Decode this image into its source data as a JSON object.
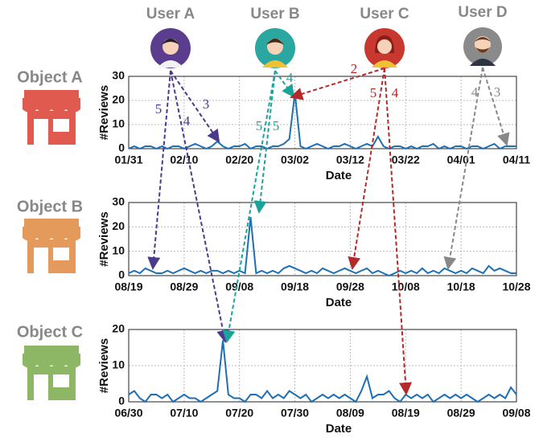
{
  "users": [
    "User A",
    "User B",
    "User C",
    "User D"
  ],
  "objects": [
    "Object A",
    "Object B",
    "Object C"
  ],
  "arrows": [
    {
      "rating": 3
    },
    {
      "rating": 5
    },
    {
      "rating": 4
    },
    {
      "rating": 4
    },
    {
      "rating": 5
    },
    {
      "rating": 5
    },
    {
      "rating": 2
    },
    {
      "rating": 5
    },
    {
      "rating": 4
    },
    {
      "rating": 3
    },
    {
      "rating": 4
    }
  ],
  "chart_data": [
    {
      "type": "line",
      "xlabel": "Date",
      "ylabel": "#Reviews",
      "color": "#1f6fb4",
      "grid": true,
      "ylim": [
        0,
        30
      ],
      "yticks": [
        0,
        10,
        20,
        30
      ],
      "xticks": [
        "01/31",
        "02/10",
        "02/20",
        "03/02",
        "03/12",
        "03/22",
        "04/01",
        "04/11"
      ],
      "x": [
        "01/31",
        "02/01",
        "02/02",
        "02/03",
        "02/04",
        "02/05",
        "02/06",
        "02/07",
        "02/08",
        "02/09",
        "02/10",
        "02/11",
        "02/12",
        "02/13",
        "02/14",
        "02/15",
        "02/16",
        "02/17",
        "02/18",
        "02/19",
        "02/20",
        "02/21",
        "02/22",
        "02/23",
        "02/24",
        "02/25",
        "02/26",
        "02/27",
        "02/28",
        "03/01",
        "03/02",
        "03/03",
        "03/04",
        "03/05",
        "03/06",
        "03/07",
        "03/08",
        "03/09",
        "03/10",
        "03/11",
        "03/12",
        "03/13",
        "03/14",
        "03/15",
        "03/16",
        "03/17",
        "03/18",
        "03/19",
        "03/20",
        "03/21",
        "03/22",
        "03/23",
        "03/24",
        "03/25",
        "03/26",
        "03/27",
        "03/28",
        "03/29",
        "03/30",
        "03/31",
        "04/01",
        "04/02",
        "04/03",
        "04/04",
        "04/05",
        "04/06",
        "04/07",
        "04/08",
        "04/09",
        "04/10",
        "04/11"
      ],
      "values": [
        0,
        1,
        0,
        1,
        1,
        0,
        1,
        0,
        1,
        1,
        0,
        1,
        2,
        1,
        0,
        1,
        3,
        1,
        0,
        1,
        1,
        2,
        0,
        1,
        1,
        0,
        1,
        1,
        2,
        4,
        23,
        1,
        0,
        1,
        2,
        1,
        0,
        1,
        1,
        2,
        1,
        0,
        1,
        2,
        1,
        5,
        1,
        0,
        1,
        1,
        0,
        1,
        0,
        1,
        1,
        2,
        0,
        1,
        0,
        1,
        1,
        0,
        1,
        1,
        0,
        1,
        2,
        0,
        1,
        1,
        1
      ]
    },
    {
      "type": "line",
      "xlabel": "Date",
      "ylabel": "#Reviews",
      "color": "#1f6fb4",
      "grid": true,
      "ylim": [
        0,
        30
      ],
      "yticks": [
        0,
        10,
        20,
        30
      ],
      "xticks": [
        "08/19",
        "08/29",
        "09/08",
        "09/18",
        "09/28",
        "10/08",
        "10/18",
        "10/28"
      ],
      "x": [
        "08/19",
        "08/20",
        "08/21",
        "08/22",
        "08/23",
        "08/24",
        "08/25",
        "08/26",
        "08/27",
        "08/28",
        "08/29",
        "08/30",
        "08/31",
        "09/01",
        "09/02",
        "09/03",
        "09/04",
        "09/05",
        "09/06",
        "09/07",
        "09/08",
        "09/09",
        "09/10",
        "09/11",
        "09/12",
        "09/13",
        "09/14",
        "09/15",
        "09/16",
        "09/17",
        "09/18",
        "09/19",
        "09/20",
        "09/21",
        "09/22",
        "09/23",
        "09/24",
        "09/25",
        "09/26",
        "09/27",
        "09/28",
        "09/29",
        "09/30",
        "10/01",
        "10/02",
        "10/03",
        "10/04",
        "10/05",
        "10/06",
        "10/07",
        "10/08",
        "10/09",
        "10/10",
        "10/11",
        "10/12",
        "10/13",
        "10/14",
        "10/15",
        "10/16",
        "10/17",
        "10/18",
        "10/19",
        "10/20",
        "10/21",
        "10/22",
        "10/23",
        "10/24",
        "10/25",
        "10/26",
        "10/27",
        "10/28"
      ],
      "values": [
        1,
        2,
        1,
        3,
        2,
        1,
        1,
        2,
        1,
        2,
        3,
        2,
        1,
        2,
        1,
        2,
        2,
        1,
        2,
        1,
        2,
        1,
        24,
        1,
        2,
        1,
        2,
        1,
        3,
        4,
        3,
        2,
        1,
        2,
        1,
        3,
        2,
        1,
        2,
        3,
        2,
        1,
        2,
        3,
        1,
        2,
        1,
        0,
        1,
        2,
        1,
        2,
        1,
        3,
        1,
        2,
        1,
        3,
        2,
        1,
        2,
        1,
        3,
        2,
        1,
        4,
        2,
        3,
        2,
        1,
        1
      ]
    },
    {
      "type": "line",
      "xlabel": "Date",
      "ylabel": "#Reviews",
      "color": "#1f6fb4",
      "grid": true,
      "ylim": [
        0,
        20
      ],
      "yticks": [
        0,
        10,
        20
      ],
      "xticks": [
        "06/30",
        "07/10",
        "07/20",
        "07/30",
        "08/09",
        "08/19",
        "08/29",
        "09/08"
      ],
      "x": [
        "06/30",
        "07/01",
        "07/02",
        "07/03",
        "07/04",
        "07/05",
        "07/06",
        "07/07",
        "07/08",
        "07/09",
        "07/10",
        "07/11",
        "07/12",
        "07/13",
        "07/14",
        "07/15",
        "07/16",
        "07/17",
        "07/18",
        "07/19",
        "07/20",
        "07/21",
        "07/22",
        "07/23",
        "07/24",
        "07/25",
        "07/26",
        "07/27",
        "07/28",
        "07/29",
        "07/30",
        "07/31",
        "08/01",
        "08/02",
        "08/03",
        "08/04",
        "08/05",
        "08/06",
        "08/07",
        "08/08",
        "08/09",
        "08/10",
        "08/11",
        "08/12",
        "08/13",
        "08/14",
        "08/15",
        "08/16",
        "08/17",
        "08/18",
        "08/19",
        "08/20",
        "08/21",
        "08/22",
        "08/23",
        "08/24",
        "08/25",
        "08/26",
        "08/27",
        "08/28",
        "08/29",
        "08/30",
        "08/31",
        "09/01",
        "09/02",
        "09/03",
        "09/04",
        "09/05",
        "09/06",
        "09/07",
        "09/08"
      ],
      "values": [
        2,
        3,
        1,
        0,
        2,
        2,
        1,
        2,
        0,
        1,
        2,
        1,
        1,
        0,
        1,
        2,
        3,
        17,
        2,
        1,
        1,
        0,
        2,
        2,
        1,
        3,
        1,
        2,
        1,
        3,
        2,
        1,
        2,
        0,
        1,
        2,
        1,
        2,
        1,
        2,
        1,
        0,
        3,
        7,
        1,
        2,
        2,
        3,
        1,
        0,
        2,
        1,
        2,
        1,
        2,
        0,
        1,
        2,
        1,
        2,
        1,
        2,
        1,
        0,
        1,
        2,
        1,
        2,
        1,
        4,
        2
      ]
    }
  ]
}
